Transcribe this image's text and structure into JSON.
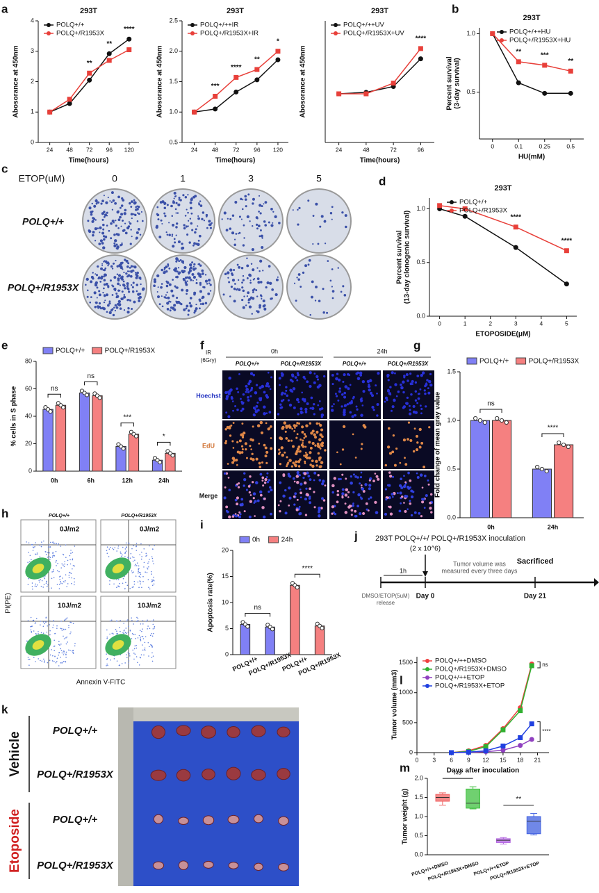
{
  "panel_labels": [
    "a",
    "b",
    "c",
    "d",
    "e",
    "f",
    "g",
    "h",
    "i",
    "j",
    "k",
    "l",
    "m"
  ],
  "colony": {
    "drug_label": "ETOP(uM)",
    "doses": [
      "0",
      "1",
      "3",
      "5"
    ],
    "rows": [
      "POLQ+/+",
      "POLQ+/R1953X"
    ]
  },
  "imaging": {
    "treatment": [
      "IR",
      "(6Gry)"
    ],
    "times": [
      "0h",
      "24h"
    ],
    "columns": [
      "POLQ+/+",
      "POLQ+/R1953X",
      "POLQ+/+",
      "POLQ+/R1953X"
    ],
    "rows": [
      "Hoechst",
      "EdU",
      "Merge"
    ]
  },
  "flow": {
    "columns": [
      "POLQ+/+",
      "POLQ+/R1953X"
    ],
    "doses": [
      "0J/m2",
      "10J/m2"
    ],
    "ylabel": "PI(PE)",
    "xlabel": "Annexin V-FITC"
  },
  "timeline": {
    "title": "293T POLQ+/+/ POLQ+/R1953X inoculation",
    "cells": "(2 x 10^6)",
    "note": [
      "Tumor volume was",
      "measured every three days"
    ],
    "interval": "1h",
    "start": [
      "DMSO/ETOP(5uM)",
      "release"
    ],
    "day0": "Day 0",
    "end_label": "Sacrificed",
    "day21": "Day 21"
  },
  "tumors": {
    "treatments": [
      "Vehicle",
      "Etoposide"
    ],
    "rows": [
      "POLQ+/+",
      "POLQ+/R1953X",
      "POLQ+/+",
      "POLQ+/R1953X"
    ]
  },
  "chart_data": [
    {
      "type": "line",
      "title": "293T",
      "x": [
        24,
        48,
        72,
        96,
        120
      ],
      "xlim": [
        10,
        132
      ],
      "xticks": [
        24,
        48,
        72,
        96,
        120
      ],
      "ylim": [
        0,
        4
      ],
      "yticks": [
        0,
        1,
        2,
        3,
        4
      ],
      "xlabel": "Time(hours)",
      "ylabel": [
        "Abosorance at 450nm"
      ],
      "legend": "upper left",
      "series": [
        {
          "name": "POLQ+/+",
          "color": "#111111",
          "values": [
            1,
            1.28,
            2.05,
            2.92,
            3.4
          ]
        },
        {
          "name": "POLQ+/R1953X",
          "color": "#e8403a",
          "values": [
            1,
            1.42,
            2.28,
            2.7,
            3.05
          ]
        }
      ],
      "annotations": [
        null,
        null,
        "**",
        "**",
        "****"
      ]
    },
    {
      "type": "line",
      "title": "293T",
      "x": [
        24,
        48,
        72,
        96,
        120
      ],
      "xlim": [
        10,
        132
      ],
      "xticks": [
        24,
        48,
        72,
        96,
        120
      ],
      "ylim": [
        0.5,
        2.5
      ],
      "yticks": [
        {
          "value": 0.5,
          "label": "0.5"
        },
        {
          "value": 1,
          "label": "1.0"
        },
        {
          "value": 1.5,
          "label": "1.5"
        },
        {
          "value": 2,
          "label": "2.0"
        },
        {
          "value": 2.5,
          "label": "2.5"
        }
      ],
      "xlabel": "Time(hours)",
      "ylabel": [
        "Abosorance at 450nm"
      ],
      "legend": "upper left",
      "series": [
        {
          "name": "POLQ+/++IR",
          "color": "#111111",
          "values": [
            1,
            1.05,
            1.33,
            1.53,
            1.86
          ]
        },
        {
          "name": "POLQ+/R1953X+IR",
          "color": "#e8403a",
          "values": [
            1,
            1.26,
            1.57,
            1.7,
            2.0
          ]
        }
      ],
      "annotations": [
        null,
        "***",
        "****",
        "**",
        "*"
      ]
    },
    {
      "type": "line",
      "title": "293T",
      "x": [
        24,
        48,
        72,
        96
      ],
      "xlim": [
        12,
        108
      ],
      "xticks": [
        24,
        48,
        72,
        96
      ],
      "ylim": [
        0,
        2.5
      ],
      "xlabel": "Time(hours)",
      "ylabel": [
        "Abosorance at 450nm"
      ],
      "legend": "upper left",
      "series": [
        {
          "name": "POLQ+/++UV",
          "color": "#111111",
          "values": [
            1,
            1.03,
            1.15,
            1.72
          ]
        },
        {
          "name": "POLQ+/R1953X+UV",
          "color": "#e8403a",
          "values": [
            1,
            1.0,
            1.22,
            1.93
          ]
        }
      ],
      "annotations": [
        null,
        null,
        null,
        "****"
      ]
    },
    {
      "type": "line",
      "title": "293T",
      "categories": [
        "0",
        "0.1",
        "0.25",
        "0.5"
      ],
      "ylim": [
        0.1,
        1.05
      ],
      "yticks": [
        {
          "value": 0.5,
          "label": "0.5"
        },
        {
          "value": 1,
          "label": "1.0"
        }
      ],
      "xlabel": "HU(mM)",
      "ylabel": [
        "Percent survival",
        "(3-day survival)"
      ],
      "legend": "upper right",
      "series": [
        {
          "name": "POLQ+/++HU",
          "color": "#111111",
          "values": [
            1,
            0.58,
            0.49,
            0.49
          ]
        },
        {
          "name": "POLQ+/R1953X+HU",
          "color": "#e8403a",
          "values": [
            1,
            0.76,
            0.73,
            0.68
          ]
        }
      ],
      "annotations": [
        null,
        "**",
        "***",
        "**"
      ]
    },
    {
      "type": "line",
      "title": "293T",
      "x": [
        0,
        1,
        3,
        5
      ],
      "xlim": [
        -0.4,
        5.4
      ],
      "xticks": [
        0,
        1,
        2,
        3,
        4,
        5
      ],
      "ylim": [
        0,
        1.1
      ],
      "yticks": [
        {
          "value": 0,
          "label": "0.0"
        },
        {
          "value": 0.5,
          "label": "0.5"
        },
        {
          "value": 1,
          "label": "1.0"
        }
      ],
      "xlabel": "ETOPOSIDE(μM)",
      "ylabel": [
        "Percent survival",
        "(13-day clonogenic survival)"
      ],
      "legend": "upper right",
      "series": [
        {
          "name": "POLQ+/+",
          "color": "#111111",
          "values": [
            1.0,
            0.93,
            0.64,
            0.3
          ]
        },
        {
          "name": "POLQ+/R1953X",
          "color": "#e8403a",
          "values": [
            1.03,
            1.0,
            0.83,
            0.61
          ]
        }
      ],
      "annotations": [
        null,
        null,
        "****",
        "****"
      ]
    },
    {
      "type": "bar",
      "categories": [
        "0h",
        "6h",
        "12h",
        "24h"
      ],
      "ylim": [
        0,
        80
      ],
      "yticks": [
        0,
        20,
        40,
        60,
        80
      ],
      "ylabel": [
        "% cells in S phase"
      ],
      "legend": "upper center",
      "series": [
        {
          "name": "POLQ+/+",
          "color": "#8080f5",
          "values": [
            45,
            57,
            18,
            8
          ]
        },
        {
          "name": "POLQ+/R1953X",
          "color": "#f58080",
          "values": [
            48,
            55,
            27,
            13
          ]
        }
      ],
      "annotations": [
        "ns",
        "ns",
        "***",
        "*"
      ]
    },
    {
      "type": "bar",
      "categories": [
        "0h",
        "24h"
      ],
      "ylim": [
        0,
        1.5
      ],
      "yticks": [
        {
          "value": 0,
          "label": "0.0"
        },
        {
          "value": 0.5,
          "label": "0.5"
        },
        {
          "value": 1,
          "label": "1.0"
        },
        {
          "value": 1.5,
          "label": "1.5"
        }
      ],
      "ylabel": [
        "Fold change of mean gray value"
      ],
      "legend": "upper center",
      "series": [
        {
          "name": "POLQ+/+",
          "color": "#8080f5",
          "values": [
            1.0,
            0.5
          ]
        },
        {
          "name": "POLQ+/R1953X",
          "color": "#f58080",
          "values": [
            1.0,
            0.75
          ]
        }
      ],
      "annotations": [
        "ns",
        "****"
      ]
    },
    {
      "type": "bar",
      "categories": [
        "POLQ+/+",
        "POLQ+/R1953X",
        "POLQ+/+",
        "POLQ+/R1953X"
      ],
      "ylim": [
        0,
        20
      ],
      "yticks": [
        0,
        5,
        10,
        15,
        20
      ],
      "ylabel": [
        "Apoptosis rate(%)"
      ],
      "legend": "upper center",
      "series": [
        {
          "name": "0h",
          "color": "#8080f5",
          "values": [
            5.8,
            5.3,
            null,
            null
          ]
        },
        {
          "name": "24h",
          "color": "#f58080",
          "values": [
            null,
            null,
            13.3,
            5.5
          ]
        }
      ],
      "annotations": [
        "ns",
        "****"
      ]
    },
    {
      "type": "line",
      "x": [
        6,
        9,
        12,
        15,
        18,
        20
      ],
      "xlim": [
        0,
        23
      ],
      "xticks": [
        0,
        3,
        6,
        9,
        12,
        15,
        18,
        21
      ],
      "ylim": [
        0,
        1600
      ],
      "yticks": [
        0,
        500,
        1000,
        1500
      ],
      "xlabel": "Days after inoculation",
      "ylabel": [
        "Tumor volume (mm3)"
      ],
      "legend": "upper left",
      "series": [
        {
          "name": "POLQ+/++DMSO",
          "color": "#f04040",
          "values": [
            0,
            30,
            120,
            400,
            750,
            1480
          ]
        },
        {
          "name": "POLQ+/R1953X+DMSO",
          "color": "#30b030",
          "values": [
            0,
            20,
            100,
            380,
            700,
            1450
          ]
        },
        {
          "name": "POLQ+/++ETOP",
          "color": "#9040c0",
          "values": [
            0,
            5,
            15,
            40,
            120,
            220
          ]
        },
        {
          "name": "POLQ+/R1953X+ETOP",
          "color": "#2040e0",
          "values": [
            0,
            8,
            30,
            110,
            250,
            480
          ]
        }
      ],
      "bracket_annotations": [
        "ns",
        "****"
      ]
    },
    {
      "type": "box",
      "categories": [
        "POLQ+/++DMSO",
        "POLQ+/R1953X+DMSO",
        "POLQ+/++ETOP",
        "POLQ+/R1953X+ETOP"
      ],
      "ylim": [
        0,
        2.0
      ],
      "yticks": [
        {
          "value": 0,
          "label": "0.0"
        },
        {
          "value": 0.5,
          "label": "0.5"
        },
        {
          "value": 1,
          "label": "1.0"
        },
        {
          "value": 1.5,
          "label": "1.5"
        },
        {
          "value": 2,
          "label": "2.0"
        }
      ],
      "ylabel": [
        "Tumor weight (g)"
      ],
      "colors": [
        "#f06060",
        "#40c040",
        "#b060e0",
        "#4060e0"
      ],
      "boxes": [
        [
          1.3,
          1.4,
          1.5,
          1.58,
          1.62
        ],
        [
          1.2,
          1.22,
          1.35,
          1.72,
          1.78
        ],
        [
          0.28,
          0.32,
          0.38,
          0.42,
          0.45
        ],
        [
          0.52,
          0.55,
          0.88,
          1.0,
          1.08
        ]
      ],
      "annotations": [
        "ns",
        "**"
      ]
    }
  ]
}
